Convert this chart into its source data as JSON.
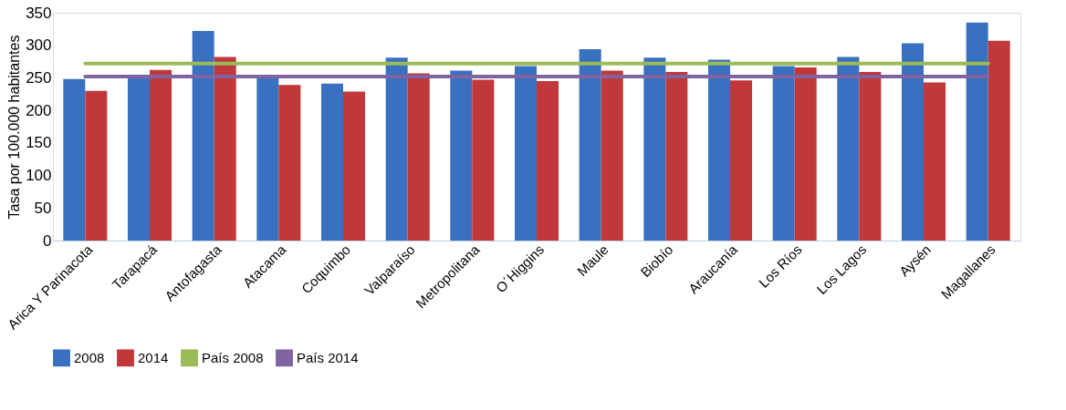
{
  "chart_data": {
    "type": "bar",
    "ylabel": "Tasa por 100.000 habitantes",
    "categories": [
      "Arica Y Parinacota",
      "Tarapacá",
      "Antofagasta",
      "Atacama",
      "Coquimbo",
      "Valparaíso",
      "Metropolitana",
      "O´Higgins",
      "Maule",
      "Biobío",
      "Araucanía",
      "Los Ríos",
      "Los Lagos",
      "Aysén",
      "Magallanes"
    ],
    "series": [
      {
        "name": "2008",
        "color": "#3a70c0",
        "values": [
          248,
          250,
          322,
          250,
          241,
          281,
          261,
          268,
          294,
          281,
          278,
          268,
          282,
          303,
          335
        ]
      },
      {
        "name": "2014",
        "color": "#c0383a",
        "values": [
          230,
          262,
          282,
          239,
          229,
          257,
          247,
          245,
          261,
          259,
          246,
          266,
          259,
          243,
          307
        ]
      },
      {
        "name": "País 2008",
        "type": "line",
        "color": "#9bbb59",
        "values": [
          272,
          272,
          272,
          272,
          272,
          272,
          272,
          272,
          272,
          272,
          272,
          272,
          272,
          272,
          272
        ]
      },
      {
        "name": "País 2014",
        "type": "line",
        "color": "#8064a2",
        "values": [
          252,
          252,
          252,
          252,
          252,
          252,
          252,
          252,
          252,
          252,
          252,
          252,
          252,
          252,
          252
        ]
      }
    ],
    "ylim": [
      0,
      350
    ],
    "yticks": [
      0,
      50,
      100,
      150,
      200,
      250,
      300,
      350
    ],
    "grid": false,
    "legend": "bottom"
  }
}
